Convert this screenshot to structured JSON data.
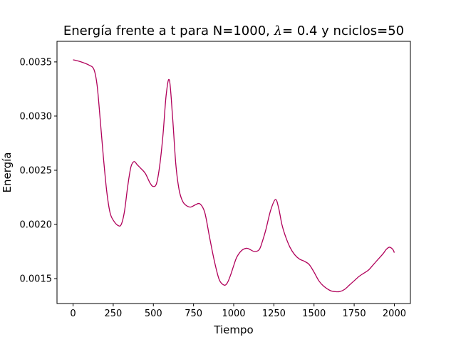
{
  "chart_data": {
    "type": "line",
    "title": "Energía frente a t para N=1000, λ= 0.4 y nciclos=50",
    "title_parts": {
      "prefix": "Energía frente a t para N=1000, ",
      "lambda_symbol": "λ",
      "suffix": "= 0.4 y nciclos=50"
    },
    "xlabel": "Tiempo",
    "ylabel": "Energía",
    "xlim": [
      -100,
      2100
    ],
    "ylim": [
      0.00127,
      0.00369
    ],
    "x_ticks": [
      0,
      250,
      500,
      750,
      1000,
      1250,
      1500,
      1750,
      2000
    ],
    "x_tick_labels": [
      "0",
      "250",
      "500",
      "750",
      "1000",
      "1250",
      "1500",
      "1750",
      "2000"
    ],
    "y_ticks": [
      0.0015,
      0.002,
      0.0025,
      0.003,
      0.0035
    ],
    "y_tick_labels": [
      "0.0015",
      "0.0020",
      "0.0025",
      "0.0030",
      "0.0035"
    ],
    "grid": false,
    "series": [
      {
        "color": "#b0005a",
        "x": [
          0,
          50,
          100,
          130,
          150,
          170,
          190,
          210,
          230,
          250,
          280,
          300,
          320,
          340,
          360,
          380,
          400,
          420,
          450,
          480,
          500,
          520,
          540,
          560,
          580,
          600,
          620,
          640,
          660,
          680,
          700,
          730,
          760,
          790,
          820,
          850,
          880,
          910,
          940,
          960,
          980,
          1000,
          1020,
          1050,
          1080,
          1100,
          1130,
          1160,
          1180,
          1200,
          1230,
          1260,
          1280,
          1300,
          1320,
          1350,
          1380,
          1410,
          1440,
          1470,
          1500,
          1530,
          1560,
          1600,
          1630,
          1660,
          1690,
          1720,
          1750,
          1780,
          1810,
          1840,
          1870,
          1900,
          1930,
          1950,
          1970,
          1990,
          2000
        ],
        "y": [
          0.00352,
          0.0035,
          0.00347,
          0.00343,
          0.00328,
          0.00295,
          0.0026,
          0.0023,
          0.00211,
          0.00204,
          0.00199,
          0.002,
          0.00212,
          0.00235,
          0.00253,
          0.00258,
          0.00255,
          0.00252,
          0.00247,
          0.00238,
          0.00235,
          0.00238,
          0.00255,
          0.00283,
          0.0032,
          0.00333,
          0.00298,
          0.00255,
          0.00232,
          0.00222,
          0.00218,
          0.00216,
          0.00218,
          0.00219,
          0.00211,
          0.00188,
          0.00166,
          0.00149,
          0.00144,
          0.00146,
          0.00153,
          0.00162,
          0.0017,
          0.00176,
          0.00178,
          0.00177,
          0.00175,
          0.00177,
          0.00185,
          0.00195,
          0.00213,
          0.00223,
          0.00215,
          0.002,
          0.0019,
          0.00179,
          0.00172,
          0.00168,
          0.00166,
          0.00163,
          0.00156,
          0.00148,
          0.00143,
          0.00139,
          0.00138,
          0.00138,
          0.0014,
          0.00144,
          0.00148,
          0.00152,
          0.00155,
          0.00158,
          0.00163,
          0.00168,
          0.00173,
          0.00177,
          0.00179,
          0.00177,
          0.00174
        ]
      }
    ]
  }
}
